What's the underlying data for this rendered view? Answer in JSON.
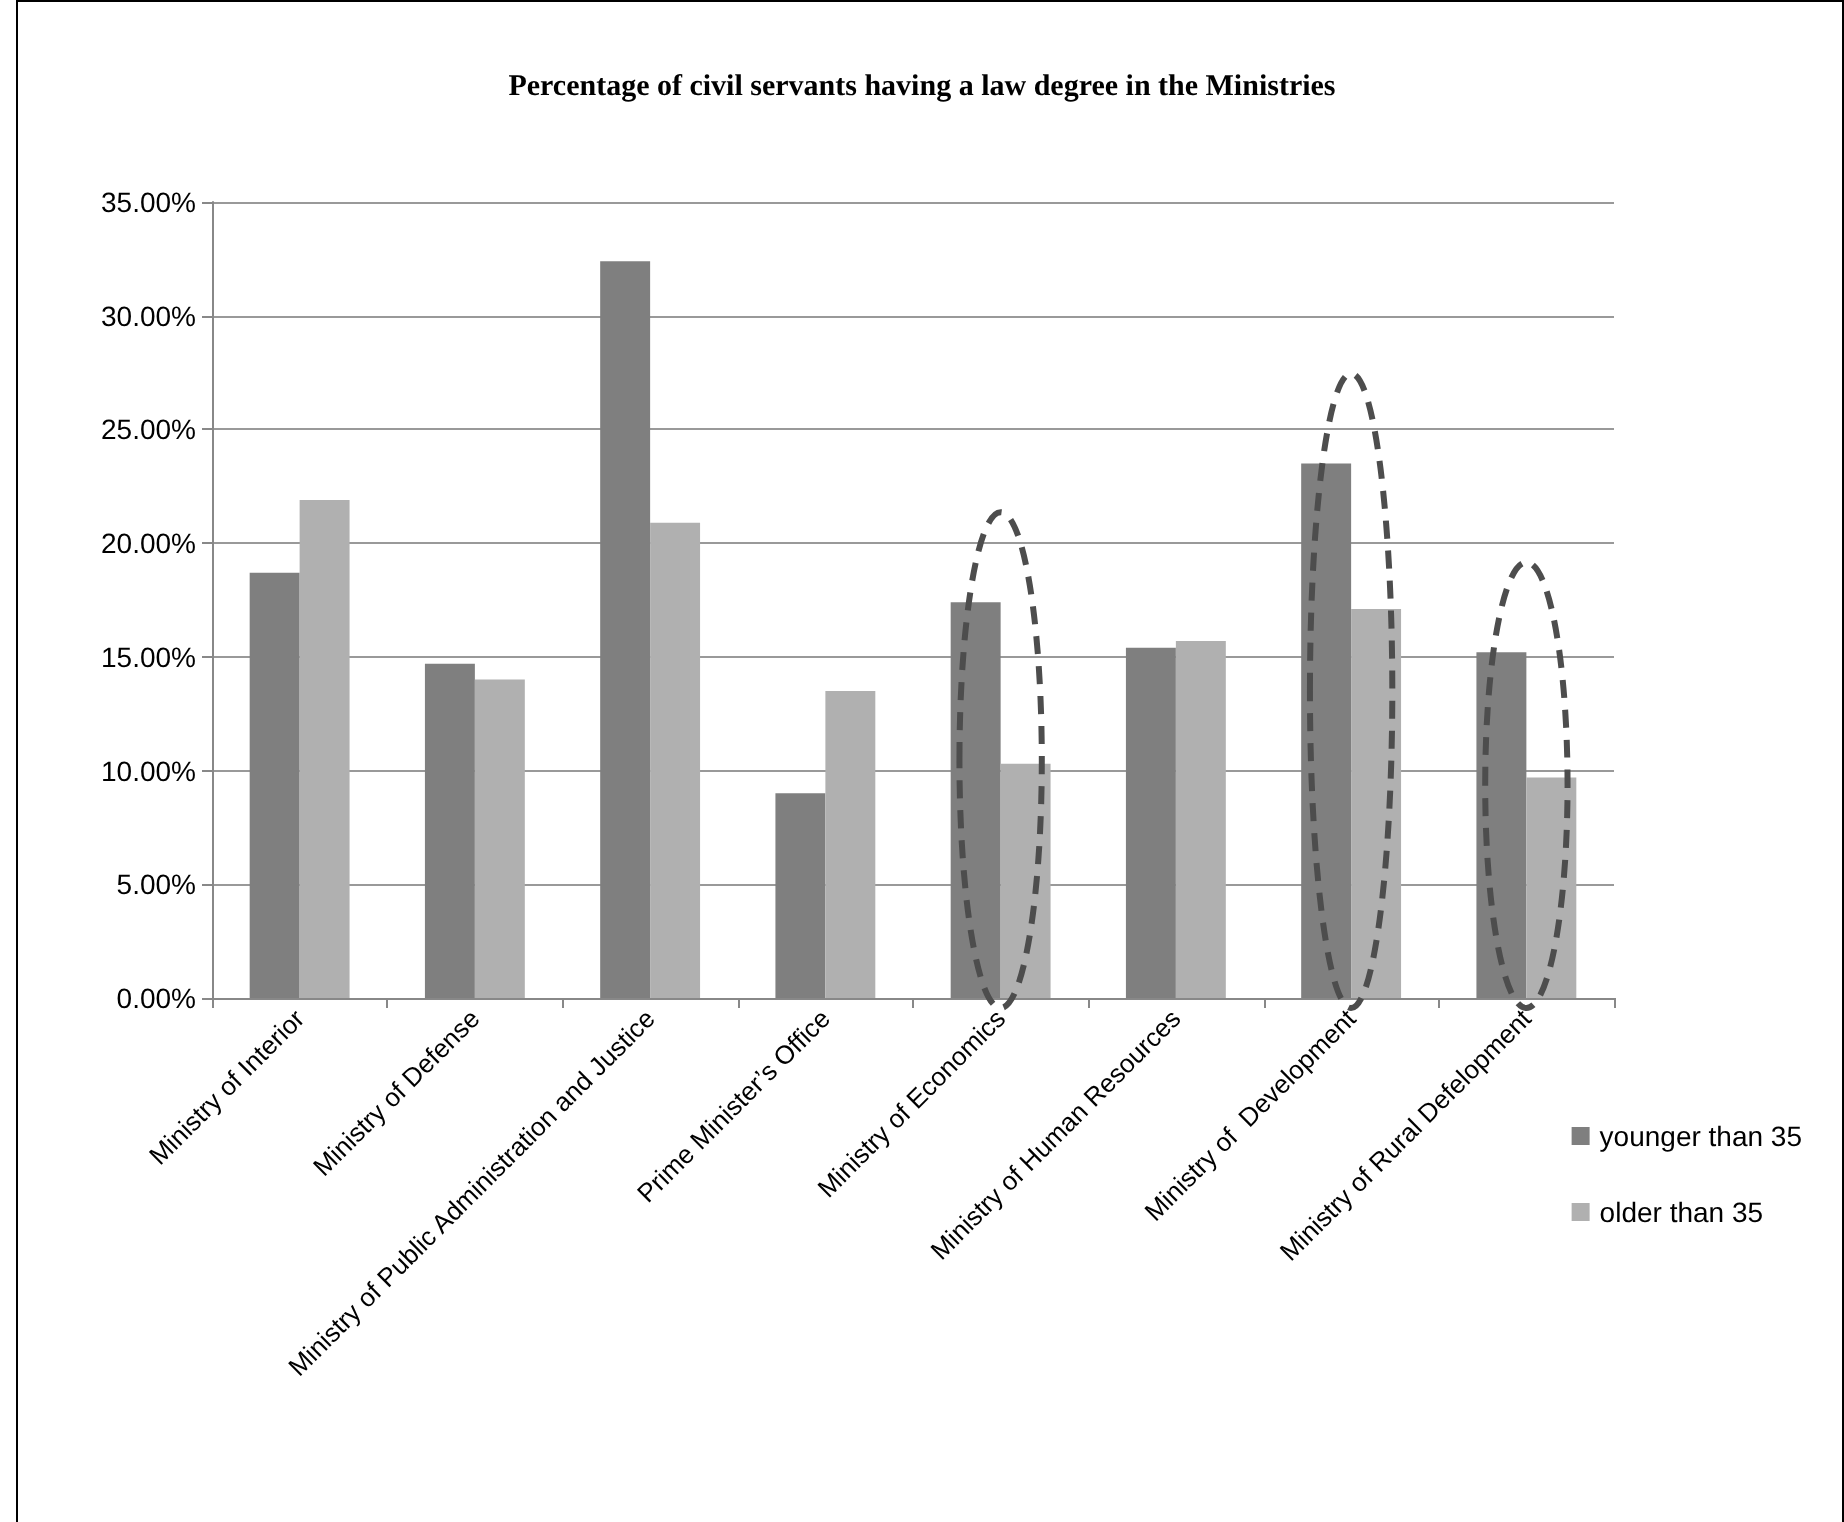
{
  "chart_data": {
    "type": "bar",
    "title": "Percentage of civil servants having a law degree in the Ministries",
    "categories": [
      "Ministry of Interior",
      "Ministry of Defense",
      "Ministry of Public Administration and Justice",
      "Prime Minister’s Office",
      "Ministry of Economics",
      "Ministry of Human Resources",
      "Ministry of  Development",
      "Ministry of Rural Defelopment"
    ],
    "series": [
      {
        "name": "younger than 35",
        "color": "#7f7f7f",
        "values": [
          18.7,
          14.7,
          32.4,
          9.0,
          17.4,
          15.4,
          23.5,
          15.2
        ]
      },
      {
        "name": "older than 35",
        "color": "#b0b0b0",
        "values": [
          21.9,
          14.0,
          20.9,
          13.5,
          10.3,
          15.7,
          17.1,
          9.7
        ]
      }
    ],
    "ylim": [
      0,
      35
    ],
    "yticks": [
      {
        "value": 0,
        "label": "0.00%"
      },
      {
        "value": 5,
        "label": "5.00%"
      },
      {
        "value": 10,
        "label": "10.00%"
      },
      {
        "value": 15,
        "label": "15.00%"
      },
      {
        "value": 20,
        "label": "20.00%"
      },
      {
        "value": 25,
        "label": "25.00%"
      },
      {
        "value": 30,
        "label": "30.00%"
      },
      {
        "value": 35,
        "label": "35.00%"
      }
    ],
    "grid": "y",
    "legend": "right"
  }
}
